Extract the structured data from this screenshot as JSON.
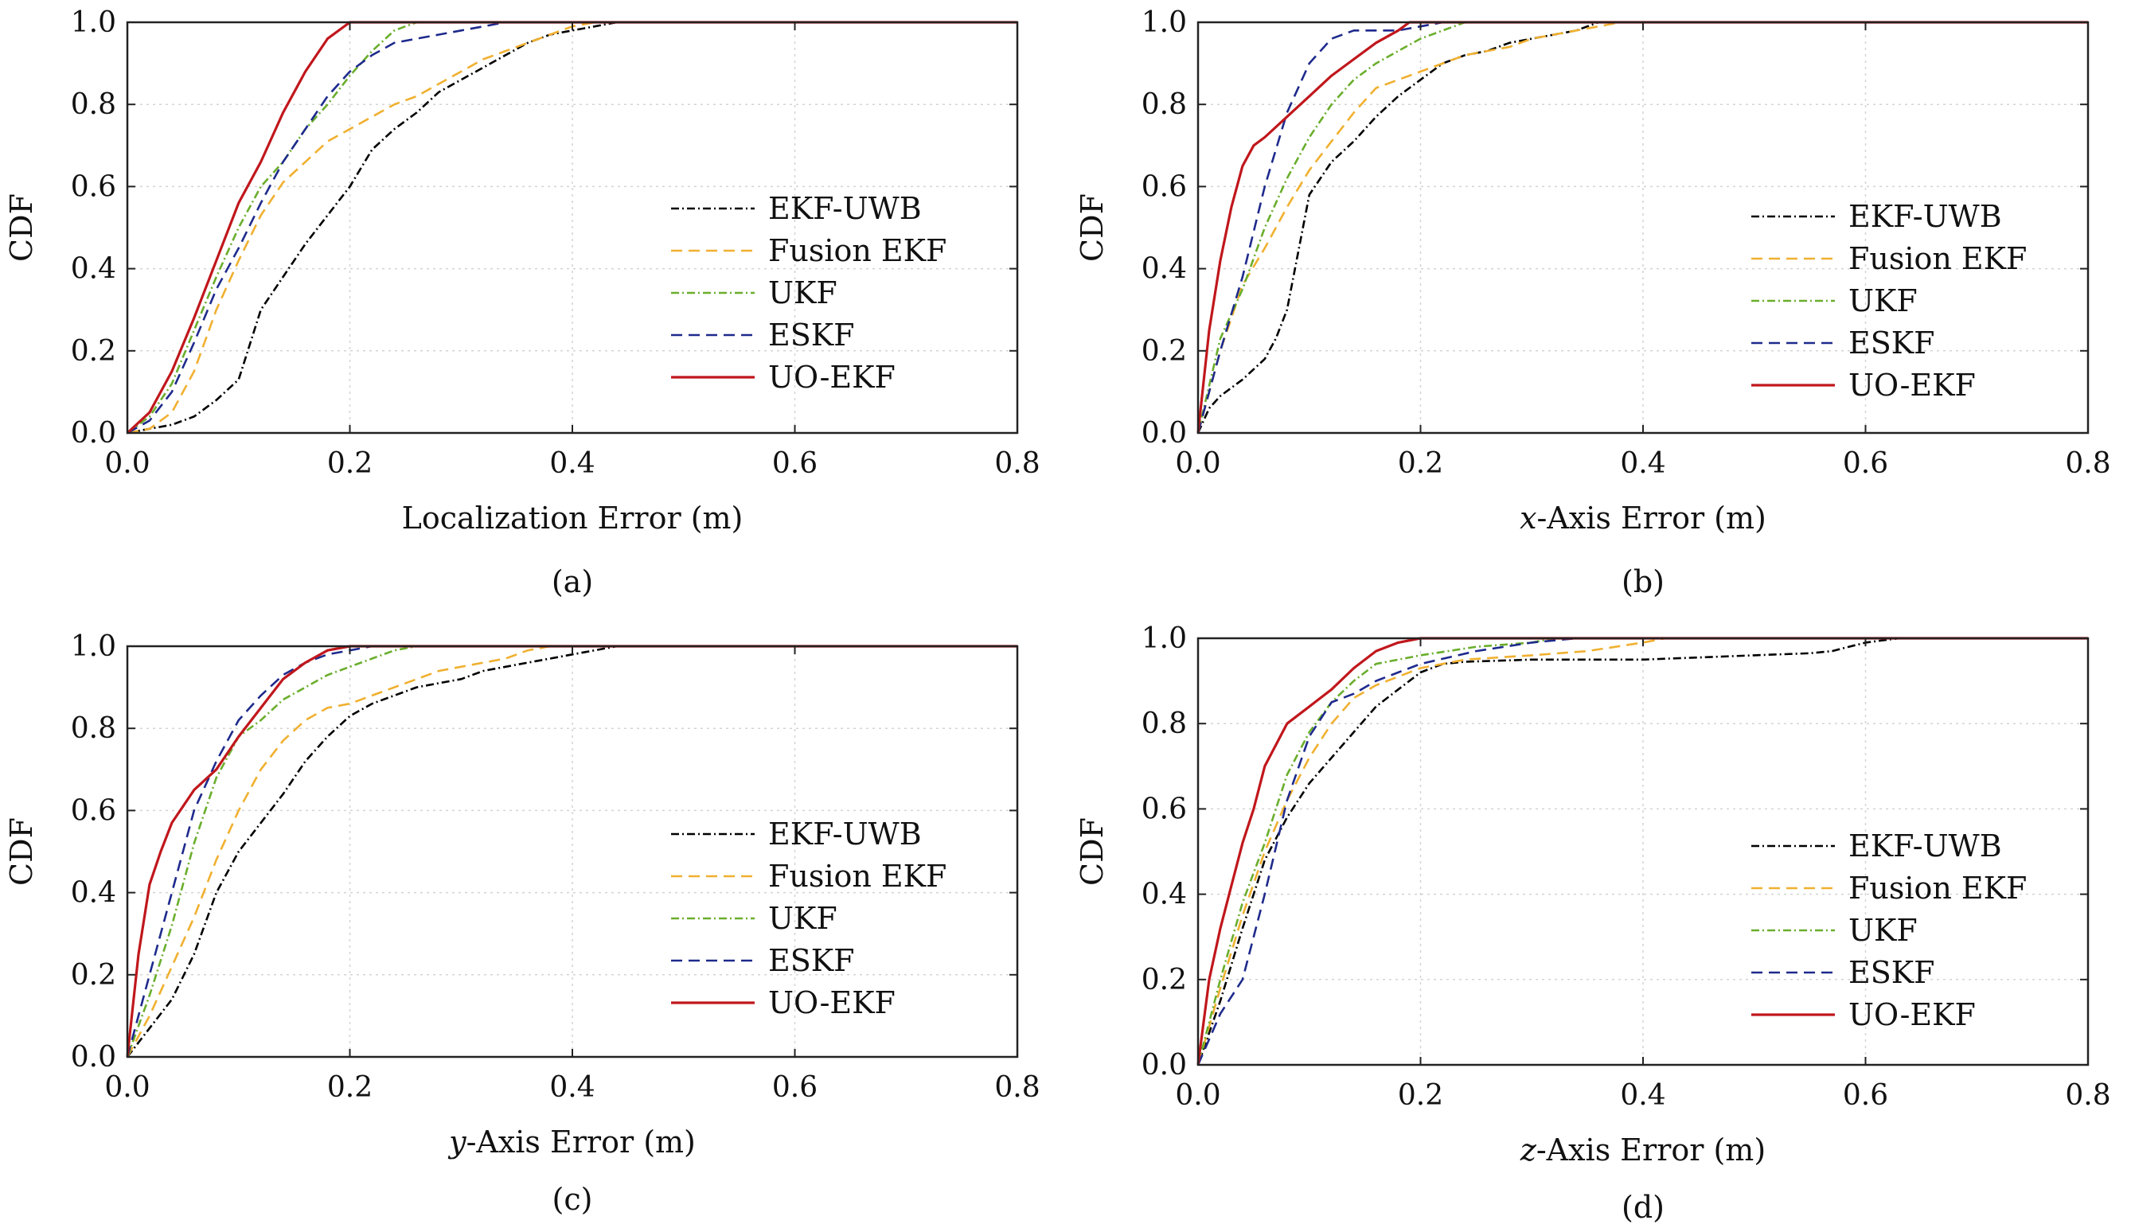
{
  "legend": [
    "EKF-UWB",
    "Fusion EKF",
    "UKF",
    "ESKF",
    "UO-EKF"
  ],
  "series_styles": [
    {
      "color": "#000000",
      "dash": "10 4 2 4"
    },
    {
      "color": "#f0b030",
      "dash": "14 8"
    },
    {
      "color": "#6aae2c",
      "dash": "10 4 2 4"
    },
    {
      "color": "#1e2a8c",
      "dash": "14 8"
    },
    {
      "color": "#c0171c",
      "dash": ""
    }
  ],
  "chart_data": [
    {
      "type": "line",
      "panel_label": "(a)",
      "xlabel": "Localization Error (m)",
      "ylabel": "CDF",
      "xlim": [
        0,
        0.8
      ],
      "ylim": [
        0,
        1
      ],
      "xticks": [
        "0.0",
        "0.2",
        "0.4",
        "0.6",
        "0.8"
      ],
      "yticks": [
        "0.0",
        "0.2",
        "0.4",
        "0.6",
        "0.8",
        "1.0"
      ],
      "grid": true,
      "legend_position": "center-right",
      "series": [
        {
          "name": "EKF-UWB",
          "x": [
            0,
            0.02,
            0.04,
            0.06,
            0.08,
            0.1,
            0.12,
            0.14,
            0.16,
            0.18,
            0.2,
            0.22,
            0.24,
            0.26,
            0.28,
            0.3,
            0.32,
            0.34,
            0.36,
            0.38,
            0.4,
            0.42,
            0.44,
            0.8
          ],
          "y": [
            0,
            0.01,
            0.02,
            0.04,
            0.08,
            0.13,
            0.3,
            0.38,
            0.46,
            0.53,
            0.6,
            0.69,
            0.74,
            0.78,
            0.83,
            0.86,
            0.89,
            0.92,
            0.95,
            0.97,
            0.98,
            0.99,
            1.0,
            1.0
          ]
        },
        {
          "name": "Fusion EKF",
          "x": [
            0,
            0.02,
            0.04,
            0.06,
            0.08,
            0.1,
            0.12,
            0.14,
            0.16,
            0.18,
            0.2,
            0.22,
            0.24,
            0.26,
            0.28,
            0.3,
            0.32,
            0.34,
            0.36,
            0.38,
            0.4,
            0.42,
            0.8
          ],
          "y": [
            0,
            0.01,
            0.05,
            0.15,
            0.3,
            0.42,
            0.53,
            0.61,
            0.66,
            0.71,
            0.74,
            0.77,
            0.8,
            0.82,
            0.85,
            0.88,
            0.91,
            0.93,
            0.95,
            0.97,
            0.99,
            1.0,
            1.0
          ]
        },
        {
          "name": "UKF",
          "x": [
            0,
            0.02,
            0.04,
            0.06,
            0.08,
            0.1,
            0.12,
            0.14,
            0.16,
            0.18,
            0.2,
            0.22,
            0.24,
            0.26,
            0.8
          ],
          "y": [
            0,
            0.04,
            0.12,
            0.25,
            0.38,
            0.5,
            0.6,
            0.66,
            0.74,
            0.8,
            0.87,
            0.93,
            0.98,
            1.0,
            1.0
          ]
        },
        {
          "name": "ESKF",
          "x": [
            0,
            0.02,
            0.04,
            0.06,
            0.08,
            0.1,
            0.12,
            0.14,
            0.16,
            0.18,
            0.2,
            0.22,
            0.24,
            0.26,
            0.28,
            0.3,
            0.32,
            0.34,
            0.8
          ],
          "y": [
            0,
            0.03,
            0.1,
            0.22,
            0.35,
            0.45,
            0.56,
            0.66,
            0.74,
            0.82,
            0.88,
            0.92,
            0.95,
            0.96,
            0.97,
            0.98,
            0.99,
            1.0,
            1.0
          ]
        },
        {
          "name": "UO-EKF",
          "x": [
            0,
            0.02,
            0.04,
            0.06,
            0.08,
            0.1,
            0.12,
            0.14,
            0.16,
            0.18,
            0.2,
            0.8
          ],
          "y": [
            0,
            0.05,
            0.15,
            0.28,
            0.42,
            0.56,
            0.66,
            0.78,
            0.88,
            0.96,
            1.0,
            1.0
          ]
        }
      ]
    },
    {
      "type": "line",
      "panel_label": "(b)",
      "xlabel_italic": "x",
      "xlabel": "-Axis Error (m)",
      "ylabel": "CDF",
      "xlim": [
        0,
        0.8
      ],
      "ylim": [
        0,
        1
      ],
      "xticks": [
        "0.0",
        "0.2",
        "0.4",
        "0.6",
        "0.8"
      ],
      "yticks": [
        "0.0",
        "0.2",
        "0.4",
        "0.6",
        "0.8",
        "1.0"
      ],
      "grid": true,
      "legend_position": "center-right",
      "series": [
        {
          "name": "EKF-UWB",
          "x": [
            0,
            0.01,
            0.02,
            0.04,
            0.06,
            0.07,
            0.08,
            0.09,
            0.1,
            0.12,
            0.14,
            0.16,
            0.18,
            0.2,
            0.22,
            0.24,
            0.26,
            0.28,
            0.3,
            0.32,
            0.34,
            0.36,
            0.8
          ],
          "y": [
            0,
            0.06,
            0.09,
            0.13,
            0.18,
            0.23,
            0.3,
            0.44,
            0.58,
            0.66,
            0.71,
            0.77,
            0.82,
            0.86,
            0.9,
            0.92,
            0.93,
            0.95,
            0.96,
            0.97,
            0.98,
            1.0,
            1.0
          ]
        },
        {
          "name": "Fusion EKF",
          "x": [
            0,
            0.02,
            0.04,
            0.06,
            0.08,
            0.1,
            0.12,
            0.14,
            0.16,
            0.18,
            0.2,
            0.22,
            0.24,
            0.26,
            0.28,
            0.3,
            0.32,
            0.34,
            0.36,
            0.38,
            0.8
          ],
          "y": [
            0,
            0.2,
            0.36,
            0.45,
            0.55,
            0.64,
            0.71,
            0.78,
            0.84,
            0.86,
            0.88,
            0.9,
            0.92,
            0.93,
            0.94,
            0.96,
            0.97,
            0.98,
            0.99,
            1.0,
            1.0
          ]
        },
        {
          "name": "UKF",
          "x": [
            0,
            0.02,
            0.04,
            0.06,
            0.08,
            0.1,
            0.12,
            0.14,
            0.16,
            0.18,
            0.2,
            0.22,
            0.24,
            0.8
          ],
          "y": [
            0,
            0.23,
            0.35,
            0.5,
            0.62,
            0.72,
            0.8,
            0.86,
            0.9,
            0.93,
            0.96,
            0.98,
            1.0,
            1.0
          ]
        },
        {
          "name": "ESKF",
          "x": [
            0,
            0.02,
            0.04,
            0.06,
            0.08,
            0.1,
            0.12,
            0.14,
            0.16,
            0.18,
            0.2,
            0.22,
            0.8
          ],
          "y": [
            0,
            0.2,
            0.38,
            0.6,
            0.78,
            0.9,
            0.96,
            0.98,
            0.98,
            0.98,
            0.99,
            1.0,
            1.0
          ]
        },
        {
          "name": "UO-EKF",
          "x": [
            0,
            0.01,
            0.02,
            0.03,
            0.04,
            0.05,
            0.06,
            0.08,
            0.1,
            0.12,
            0.14,
            0.16,
            0.18,
            0.19,
            0.8
          ],
          "y": [
            0,
            0.25,
            0.42,
            0.55,
            0.65,
            0.7,
            0.72,
            0.77,
            0.82,
            0.87,
            0.91,
            0.95,
            0.98,
            1.0,
            1.0
          ]
        }
      ]
    },
    {
      "type": "line",
      "panel_label": "(c)",
      "xlabel_italic": "y",
      "xlabel": "-Axis Error (m)",
      "ylabel": "CDF",
      "xlim": [
        0,
        0.8
      ],
      "ylim": [
        0,
        1
      ],
      "xticks": [
        "0.0",
        "0.2",
        "0.4",
        "0.6",
        "0.8"
      ],
      "yticks": [
        "0.0",
        "0.2",
        "0.4",
        "0.6",
        "0.8",
        "1.0"
      ],
      "grid": true,
      "legend_position": "center-right",
      "series": [
        {
          "name": "EKF-UWB",
          "x": [
            0,
            0.02,
            0.04,
            0.06,
            0.08,
            0.1,
            0.12,
            0.14,
            0.16,
            0.18,
            0.2,
            0.22,
            0.24,
            0.26,
            0.28,
            0.3,
            0.32,
            0.34,
            0.36,
            0.38,
            0.4,
            0.42,
            0.44,
            0.8
          ],
          "y": [
            0,
            0.07,
            0.14,
            0.25,
            0.4,
            0.5,
            0.57,
            0.64,
            0.72,
            0.78,
            0.83,
            0.86,
            0.88,
            0.9,
            0.91,
            0.92,
            0.94,
            0.95,
            0.96,
            0.97,
            0.98,
            0.99,
            1.0,
            1.0
          ]
        },
        {
          "name": "Fusion EKF",
          "x": [
            0,
            0.02,
            0.04,
            0.06,
            0.08,
            0.1,
            0.12,
            0.14,
            0.16,
            0.18,
            0.2,
            0.22,
            0.24,
            0.26,
            0.28,
            0.3,
            0.32,
            0.34,
            0.36,
            0.38,
            0.8
          ],
          "y": [
            0,
            0.1,
            0.22,
            0.34,
            0.48,
            0.6,
            0.7,
            0.77,
            0.82,
            0.85,
            0.86,
            0.88,
            0.9,
            0.92,
            0.94,
            0.95,
            0.96,
            0.97,
            0.99,
            1.0,
            1.0
          ]
        },
        {
          "name": "UKF",
          "x": [
            0,
            0.02,
            0.04,
            0.06,
            0.08,
            0.1,
            0.12,
            0.14,
            0.16,
            0.18,
            0.2,
            0.22,
            0.24,
            0.26,
            0.8
          ],
          "y": [
            0,
            0.15,
            0.32,
            0.52,
            0.68,
            0.78,
            0.82,
            0.87,
            0.9,
            0.93,
            0.95,
            0.97,
            0.99,
            1.0,
            1.0
          ]
        },
        {
          "name": "ESKF",
          "x": [
            0,
            0.02,
            0.04,
            0.06,
            0.08,
            0.1,
            0.12,
            0.14,
            0.16,
            0.18,
            0.2,
            0.22,
            0.24,
            0.8
          ],
          "y": [
            0,
            0.2,
            0.4,
            0.6,
            0.72,
            0.82,
            0.88,
            0.93,
            0.96,
            0.98,
            0.99,
            1.0,
            1.0,
            1.0
          ]
        },
        {
          "name": "UO-EKF",
          "x": [
            0,
            0.01,
            0.02,
            0.03,
            0.04,
            0.05,
            0.06,
            0.08,
            0.1,
            0.12,
            0.14,
            0.16,
            0.18,
            0.2,
            0.8
          ],
          "y": [
            0,
            0.25,
            0.42,
            0.5,
            0.57,
            0.61,
            0.65,
            0.7,
            0.78,
            0.85,
            0.92,
            0.96,
            0.99,
            1.0,
            1.0
          ]
        }
      ]
    },
    {
      "type": "line",
      "panel_label": "(d)",
      "xlabel_italic": "z",
      "xlabel": "-Axis Error (m)",
      "ylabel": "CDF",
      "xlim": [
        0,
        0.8
      ],
      "ylim": [
        0,
        1
      ],
      "xticks": [
        "0.0",
        "0.2",
        "0.4",
        "0.6",
        "0.8"
      ],
      "yticks": [
        "0.0",
        "0.2",
        "0.4",
        "0.6",
        "0.8",
        "1.0"
      ],
      "grid": true,
      "legend_position": "center-right",
      "series": [
        {
          "name": "EKF-UWB",
          "x": [
            0,
            0.02,
            0.04,
            0.06,
            0.08,
            0.1,
            0.12,
            0.14,
            0.16,
            0.18,
            0.2,
            0.22,
            0.24,
            0.3,
            0.4,
            0.45,
            0.5,
            0.55,
            0.57,
            0.6,
            0.63,
            0.8
          ],
          "y": [
            0,
            0.15,
            0.32,
            0.48,
            0.58,
            0.66,
            0.72,
            0.78,
            0.84,
            0.88,
            0.92,
            0.94,
            0.945,
            0.95,
            0.95,
            0.955,
            0.96,
            0.965,
            0.97,
            0.99,
            1.0,
            1.0
          ]
        },
        {
          "name": "Fusion EKF",
          "x": [
            0,
            0.02,
            0.04,
            0.06,
            0.08,
            0.1,
            0.12,
            0.14,
            0.16,
            0.18,
            0.2,
            0.22,
            0.24,
            0.3,
            0.35,
            0.4,
            0.42,
            0.8
          ],
          "y": [
            0,
            0.18,
            0.35,
            0.5,
            0.62,
            0.72,
            0.8,
            0.86,
            0.89,
            0.91,
            0.93,
            0.94,
            0.95,
            0.96,
            0.97,
            0.99,
            1.0,
            1.0
          ]
        },
        {
          "name": "UKF",
          "x": [
            0,
            0.02,
            0.04,
            0.06,
            0.08,
            0.1,
            0.12,
            0.14,
            0.16,
            0.18,
            0.2,
            0.25,
            0.3,
            0.32,
            0.8
          ],
          "y": [
            0,
            0.2,
            0.38,
            0.52,
            0.68,
            0.78,
            0.85,
            0.9,
            0.94,
            0.95,
            0.96,
            0.98,
            0.99,
            1.0,
            1.0
          ]
        },
        {
          "name": "ESKF",
          "x": [
            0,
            0.02,
            0.04,
            0.06,
            0.08,
            0.1,
            0.12,
            0.14,
            0.16,
            0.18,
            0.2,
            0.25,
            0.3,
            0.34,
            0.8
          ],
          "y": [
            0,
            0.12,
            0.2,
            0.4,
            0.62,
            0.77,
            0.85,
            0.87,
            0.9,
            0.92,
            0.94,
            0.97,
            0.99,
            1.0,
            1.0
          ]
        },
        {
          "name": "UO-EKF",
          "x": [
            0,
            0.01,
            0.02,
            0.03,
            0.04,
            0.05,
            0.06,
            0.08,
            0.1,
            0.12,
            0.14,
            0.16,
            0.18,
            0.2,
            0.22,
            0.8
          ],
          "y": [
            0,
            0.2,
            0.32,
            0.42,
            0.52,
            0.6,
            0.7,
            0.8,
            0.84,
            0.88,
            0.93,
            0.97,
            0.99,
            1.0,
            1.0,
            1.0
          ]
        }
      ]
    }
  ]
}
